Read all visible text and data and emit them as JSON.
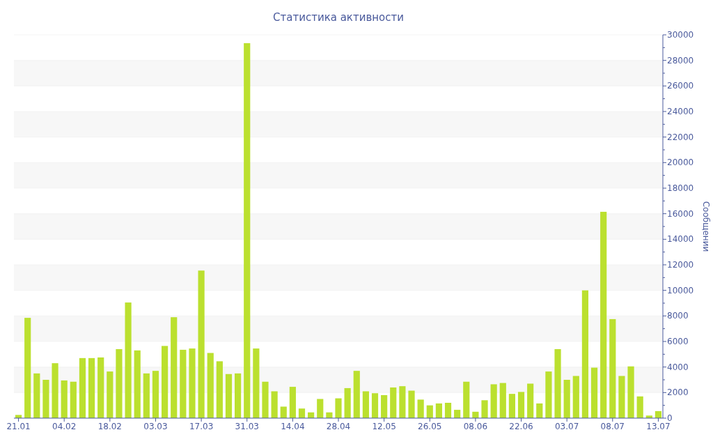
{
  "chart_data": {
    "type": "bar",
    "title": "Статистика активности",
    "y2label": "Сообщении",
    "categories": [
      "21.01",
      null,
      null,
      null,
      null,
      "04.02",
      null,
      null,
      null,
      null,
      "18.02",
      null,
      null,
      null,
      null,
      "03.03",
      null,
      null,
      null,
      null,
      "17.03",
      null,
      null,
      null,
      null,
      "31.03",
      null,
      null,
      null,
      null,
      "14.04",
      null,
      null,
      null,
      null,
      "28.04",
      null,
      null,
      null,
      null,
      "12.05",
      null,
      null,
      null,
      null,
      "26.05",
      null,
      null,
      null,
      null,
      "08.06",
      null,
      null,
      null,
      null,
      "22.06",
      null,
      null,
      null,
      null,
      "03.07",
      null,
      null,
      null,
      null,
      "08.07",
      null,
      null,
      null,
      null,
      "13.07"
    ],
    "series": [
      {
        "color": "#bbe02f",
        "axis": "y2",
        "values": [
          250,
          7850,
          3500,
          3000,
          4300,
          2950,
          2850,
          4700,
          4700,
          4750,
          3650,
          5400,
          9050,
          5300,
          3500,
          3700,
          5650,
          7900,
          5350,
          5450,
          11550,
          5100,
          4450,
          3450,
          3500,
          29350,
          5450,
          2850,
          2100,
          900,
          2450,
          750,
          450,
          1500,
          450,
          1550,
          2350,
          3700,
          2100,
          1950,
          1800,
          2400,
          2500,
          2150,
          1450,
          1000,
          1150,
          1200,
          650,
          2850,
          500,
          1400,
          2650,
          2750,
          1900,
          2050,
          2700,
          1150,
          3650,
          5400,
          3000,
          3300,
          10000,
          3950,
          16150,
          7750,
          3300,
          4050,
          1700,
          200,
          550
        ]
      }
    ],
    "y2lim": [
      0,
      30000
    ],
    "y2ticks": [
      0,
      2000,
      4000,
      6000,
      8000,
      10000,
      12000,
      14000,
      16000,
      18000,
      20000,
      22000,
      24000,
      26000,
      28000,
      30000
    ],
    "grid": "y"
  }
}
